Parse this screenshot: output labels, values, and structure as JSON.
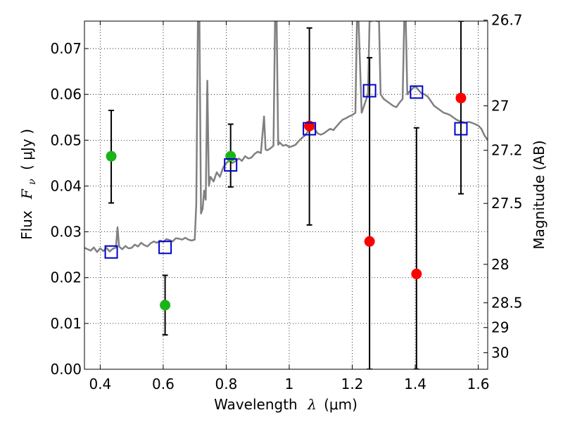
{
  "chart_data": {
    "type": "scatter",
    "xlabel_text": "Wavelength",
    "xlabel_symbol": "λ",
    "xlabel_unit": "(μm)",
    "ylabel_text": "Flux",
    "ylabel_symbol": "F",
    "ylabel_sub": "ν",
    "ylabel_unit": "( μJy )",
    "y2label": "Magnitude (AB)",
    "xlim": [
      0.35,
      1.63
    ],
    "ylim": [
      0.0,
      0.076
    ],
    "grid": true,
    "x_ticks": [
      0.4,
      0.6,
      0.8,
      1.0,
      1.2,
      1.4,
      1.6
    ],
    "x_tick_labels": [
      "0.4",
      "0.6",
      "0.8",
      "1",
      "1.2",
      "1.4",
      "1.6"
    ],
    "y_ticks": [
      0.0,
      0.01,
      0.02,
      0.03,
      0.04,
      0.05,
      0.06,
      0.07
    ],
    "y_tick_labels": [
      "0.00",
      "0.01",
      "0.02",
      "0.03",
      "0.04",
      "0.05",
      "0.06",
      "0.07"
    ],
    "y2_ticks": [
      {
        "flux": 0.0762,
        "label": "26.7"
      },
      {
        "flux": 0.0575,
        "label": "27"
      },
      {
        "flux": 0.0478,
        "label": "27.2"
      },
      {
        "flux": 0.0362,
        "label": "27.5"
      },
      {
        "flux": 0.0229,
        "label": "28"
      },
      {
        "flux": 0.0145,
        "label": "28.5"
      },
      {
        "flux": 0.0091,
        "label": "29"
      },
      {
        "flux": 0.0036,
        "label": "30"
      }
    ],
    "colors": {
      "model": "#808080",
      "green": "#1ab31a",
      "red": "#ff0000",
      "square": "#0000cc",
      "errorbar": "#000000"
    },
    "series": [
      {
        "kind": "line",
        "points": [
          [
            0.35,
            0.0265
          ],
          [
            0.36,
            0.0262
          ],
          [
            0.37,
            0.0259
          ],
          [
            0.38,
            0.0266
          ],
          [
            0.39,
            0.0256
          ],
          [
            0.4,
            0.0264
          ],
          [
            0.41,
            0.0258
          ],
          [
            0.42,
            0.0265
          ],
          [
            0.43,
            0.0257
          ],
          [
            0.44,
            0.0263
          ],
          [
            0.45,
            0.0266
          ],
          [
            0.455,
            0.031
          ],
          [
            0.46,
            0.0268
          ],
          [
            0.47,
            0.0262
          ],
          [
            0.48,
            0.0269
          ],
          [
            0.49,
            0.0264
          ],
          [
            0.5,
            0.0265
          ],
          [
            0.51,
            0.0272
          ],
          [
            0.52,
            0.0268
          ],
          [
            0.53,
            0.0276
          ],
          [
            0.54,
            0.0271
          ],
          [
            0.55,
            0.0268
          ],
          [
            0.56,
            0.0275
          ],
          [
            0.57,
            0.0279
          ],
          [
            0.58,
            0.0276
          ],
          [
            0.59,
            0.0281
          ],
          [
            0.6,
            0.0278
          ],
          [
            0.61,
            0.0284
          ],
          [
            0.62,
            0.0282
          ],
          [
            0.63,
            0.0279
          ],
          [
            0.64,
            0.0286
          ],
          [
            0.65,
            0.0285
          ],
          [
            0.66,
            0.0283
          ],
          [
            0.67,
            0.0287
          ],
          [
            0.68,
            0.0283
          ],
          [
            0.69,
            0.0281
          ],
          [
            0.7,
            0.0283
          ],
          [
            0.705,
            0.036
          ],
          [
            0.71,
            0.076
          ],
          [
            0.715,
            0.076
          ],
          [
            0.72,
            0.034
          ],
          [
            0.725,
            0.035
          ],
          [
            0.73,
            0.039
          ],
          [
            0.735,
            0.037
          ],
          [
            0.74,
            0.063
          ],
          [
            0.745,
            0.04
          ],
          [
            0.75,
            0.042
          ],
          [
            0.76,
            0.041
          ],
          [
            0.77,
            0.043
          ],
          [
            0.78,
            0.042
          ],
          [
            0.79,
            0.044
          ],
          [
            0.8,
            0.045
          ],
          [
            0.81,
            0.0455
          ],
          [
            0.82,
            0.045
          ],
          [
            0.83,
            0.0455
          ],
          [
            0.84,
            0.046
          ],
          [
            0.85,
            0.0455
          ],
          [
            0.86,
            0.0465
          ],
          [
            0.87,
            0.046
          ],
          [
            0.88,
            0.0462
          ],
          [
            0.89,
            0.047
          ],
          [
            0.9,
            0.0475
          ],
          [
            0.91,
            0.0472
          ],
          [
            0.92,
            0.0552
          ],
          [
            0.925,
            0.048
          ],
          [
            0.93,
            0.0478
          ],
          [
            0.94,
            0.0482
          ],
          [
            0.95,
            0.0488
          ],
          [
            0.955,
            0.076
          ],
          [
            0.96,
            0.076
          ],
          [
            0.965,
            0.049
          ],
          [
            0.97,
            0.0495
          ],
          [
            0.98,
            0.0488
          ],
          [
            0.99,
            0.049
          ],
          [
            1.0,
            0.0485
          ],
          [
            1.01,
            0.0487
          ],
          [
            1.02,
            0.049
          ],
          [
            1.03,
            0.0498
          ],
          [
            1.04,
            0.0505
          ],
          [
            1.05,
            0.051
          ],
          [
            1.06,
            0.052
          ],
          [
            1.07,
            0.053
          ],
          [
            1.08,
            0.0525
          ],
          [
            1.09,
            0.0515
          ],
          [
            1.1,
            0.0512
          ],
          [
            1.11,
            0.0515
          ],
          [
            1.12,
            0.052
          ],
          [
            1.13,
            0.0525
          ],
          [
            1.14,
            0.0522
          ],
          [
            1.15,
            0.053
          ],
          [
            1.16,
            0.0538
          ],
          [
            1.17,
            0.0545
          ],
          [
            1.18,
            0.0548
          ],
          [
            1.19,
            0.0552
          ],
          [
            1.2,
            0.0555
          ],
          [
            1.21,
            0.056
          ],
          [
            1.215,
            0.076
          ],
          [
            1.22,
            0.076
          ],
          [
            1.23,
            0.056
          ],
          [
            1.24,
            0.058
          ],
          [
            1.25,
            0.06
          ],
          [
            1.255,
            0.076
          ],
          [
            1.26,
            0.076
          ],
          [
            1.27,
            0.0762
          ],
          [
            1.28,
            0.076
          ],
          [
            1.285,
            0.076
          ],
          [
            1.29,
            0.06
          ],
          [
            1.3,
            0.059
          ],
          [
            1.31,
            0.0585
          ],
          [
            1.32,
            0.058
          ],
          [
            1.33,
            0.0575
          ],
          [
            1.34,
            0.0572
          ],
          [
            1.35,
            0.0582
          ],
          [
            1.36,
            0.059
          ],
          [
            1.365,
            0.076
          ],
          [
            1.37,
            0.076
          ],
          [
            1.375,
            0.06
          ],
          [
            1.38,
            0.0605
          ],
          [
            1.39,
            0.0612
          ],
          [
            1.4,
            0.0618
          ],
          [
            1.41,
            0.061
          ],
          [
            1.42,
            0.0602
          ],
          [
            1.43,
            0.06
          ],
          [
            1.44,
            0.0595
          ],
          [
            1.45,
            0.0585
          ],
          [
            1.46,
            0.0575
          ],
          [
            1.47,
            0.057
          ],
          [
            1.48,
            0.0565
          ],
          [
            1.49,
            0.056
          ],
          [
            1.5,
            0.0558
          ],
          [
            1.51,
            0.0555
          ],
          [
            1.52,
            0.055
          ],
          [
            1.53,
            0.0545
          ],
          [
            1.54,
            0.0542
          ],
          [
            1.55,
            0.054
          ],
          [
            1.56,
            0.0538
          ],
          [
            1.57,
            0.054
          ],
          [
            1.58,
            0.0538
          ],
          [
            1.59,
            0.0535
          ],
          [
            1.6,
            0.0532
          ],
          [
            1.61,
            0.0525
          ],
          [
            1.62,
            0.051
          ],
          [
            1.63,
            0.05
          ]
        ]
      },
      {
        "kind": "errorbar",
        "points": [
          {
            "x": 0.435,
            "low": 0.0363,
            "high": 0.0565
          },
          {
            "x": 0.606,
            "low": 0.0075,
            "high": 0.0205
          },
          {
            "x": 0.814,
            "low": 0.0398,
            "high": 0.0535
          },
          {
            "x": 1.064,
            "low": 0.0315,
            "high": 0.0745
          },
          {
            "x": 1.255,
            "low": 0.0,
            "high": 0.068
          },
          {
            "x": 1.404,
            "low": 0.0,
            "high": 0.0527
          },
          {
            "x": 1.545,
            "low": 0.0383,
            "high": 0.076
          }
        ]
      },
      {
        "kind": "markers-green",
        "points": [
          [
            0.435,
            0.0465
          ],
          [
            0.606,
            0.014
          ],
          [
            0.814,
            0.0465
          ]
        ]
      },
      {
        "kind": "markers-red",
        "points": [
          [
            1.064,
            0.0531
          ],
          [
            1.255,
            0.0279
          ],
          [
            1.404,
            0.0208
          ],
          [
            1.545,
            0.0592
          ]
        ]
      },
      {
        "kind": "markers-square",
        "points": [
          [
            0.435,
            0.0256
          ],
          [
            0.606,
            0.0266
          ],
          [
            0.814,
            0.0446
          ],
          [
            1.064,
            0.0525
          ],
          [
            1.255,
            0.0608
          ],
          [
            1.404,
            0.0605
          ],
          [
            1.545,
            0.0525
          ]
        ]
      }
    ]
  }
}
